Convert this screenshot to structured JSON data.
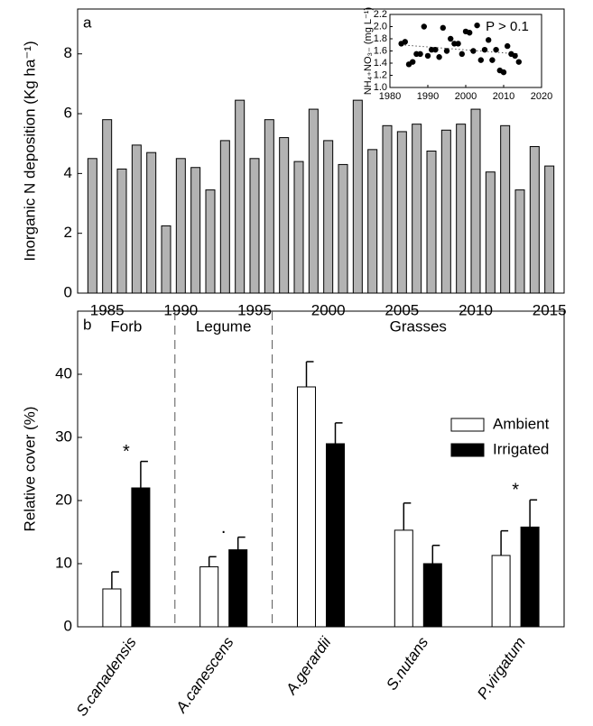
{
  "chart_data": [
    {
      "type": "bar",
      "panel_label": "a",
      "ylabel": "Inorganic N deposition (Kg ha⁻¹)",
      "x": [
        1984,
        1985,
        1986,
        1987,
        1988,
        1989,
        1990,
        1991,
        1992,
        1993,
        1994,
        1995,
        1996,
        1997,
        1998,
        1999,
        2000,
        2001,
        2002,
        2003,
        2004,
        2005,
        2006,
        2007,
        2008,
        2009,
        2010,
        2011,
        2012,
        2013,
        2014,
        2015
      ],
      "values": [
        4.5,
        5.8,
        4.15,
        4.95,
        4.7,
        2.25,
        4.5,
        4.2,
        3.45,
        5.1,
        6.45,
        4.5,
        5.8,
        5.2,
        4.4,
        6.15,
        5.1,
        4.3,
        6.45,
        4.8,
        5.6,
        5.4,
        5.65,
        4.75,
        5.45,
        5.65,
        6.15,
        4.05,
        5.6,
        3.45,
        4.9,
        4.25
      ],
      "color": "#b3b3b3",
      "xlim": [
        1983,
        2016
      ],
      "xticks": [
        1985,
        1990,
        1995,
        2000,
        2005,
        2010,
        2015
      ],
      "ylim": [
        0,
        9.5
      ],
      "yticks": [
        0,
        2,
        4,
        6,
        8
      ]
    },
    {
      "type": "scatter",
      "ylabel": "NH₄₊NO₃₋ (mg L⁻¹)",
      "annotation": "P > 0.1",
      "x": [
        1983,
        1984,
        1985,
        1986,
        1987,
        1988,
        1989,
        1990,
        1991,
        1992,
        1993,
        1994,
        1995,
        1996,
        1997,
        1998,
        1999,
        2000,
        2001,
        2002,
        2003,
        2004,
        2005,
        2006,
        2007,
        2008,
        2009,
        2010,
        2011,
        2012,
        2013,
        2014
      ],
      "values": [
        1.72,
        1.75,
        1.38,
        1.42,
        1.55,
        1.55,
        2.0,
        1.52,
        1.62,
        1.62,
        1.5,
        1.98,
        1.6,
        1.8,
        1.72,
        1.72,
        1.55,
        1.92,
        1.9,
        1.6,
        2.02,
        1.45,
        1.62,
        1.78,
        1.45,
        1.62,
        1.28,
        1.25,
        1.68,
        1.55,
        1.52,
        1.42
      ],
      "color": "#000000",
      "trend": {
        "x": [
          1983,
          2014
        ],
        "values": [
          1.7,
          1.55
        ]
      },
      "xlim": [
        1980,
        2020
      ],
      "xticks": [
        1980,
        1990,
        2000,
        2010,
        2020
      ],
      "ylim": [
        1.0,
        2.2
      ],
      "yticks": [
        {
          "value": 1.0,
          "label": "1.0"
        },
        {
          "value": 1.2,
          "label": "1.2"
        },
        {
          "value": 1.4,
          "label": "1.4"
        },
        {
          "value": 1.6,
          "label": "1.6"
        },
        {
          "value": 1.8,
          "label": "1.8"
        },
        {
          "value": 2.0,
          "label": "2.0"
        },
        {
          "value": 2.2,
          "label": "2.2"
        }
      ]
    },
    {
      "type": "bar",
      "panel_label": "b",
      "ylabel": "Relative cover (%)",
      "categories": [
        "S.canadensis",
        "A.canescens",
        "A.gerardii",
        "S.nutans",
        "P.virgatum"
      ],
      "groups": [
        {
          "label": "Forb",
          "categories": [
            "S.canadensis"
          ]
        },
        {
          "label": "Legume",
          "categories": [
            "A.canescens"
          ]
        },
        {
          "label": "Grasses",
          "categories": [
            "A.gerardii",
            "S.nutans",
            "P.virgatum"
          ]
        }
      ],
      "series": [
        {
          "name": "Ambient",
          "color": "#ffffff",
          "values": [
            6,
            9.5,
            38,
            15.3,
            11.3
          ],
          "errors": [
            2.7,
            1.6,
            4,
            4.3,
            3.9
          ]
        },
        {
          "name": "Irrigated",
          "color": "#000000",
          "values": [
            22,
            12.2,
            29,
            10,
            15.8
          ],
          "errors": [
            4.2,
            2,
            3.3,
            2.9,
            4.3
          ]
        }
      ],
      "annotations": [
        {
          "text": "*",
          "category": "S.canadensis"
        },
        {
          "text": ".",
          "category": "A.canescens"
        },
        {
          "text": "*",
          "category": "P.virgatum"
        }
      ],
      "ylim": [
        0,
        50
      ],
      "yticks": [
        0,
        10,
        20,
        30,
        40
      ],
      "legend": "upper-right"
    }
  ]
}
